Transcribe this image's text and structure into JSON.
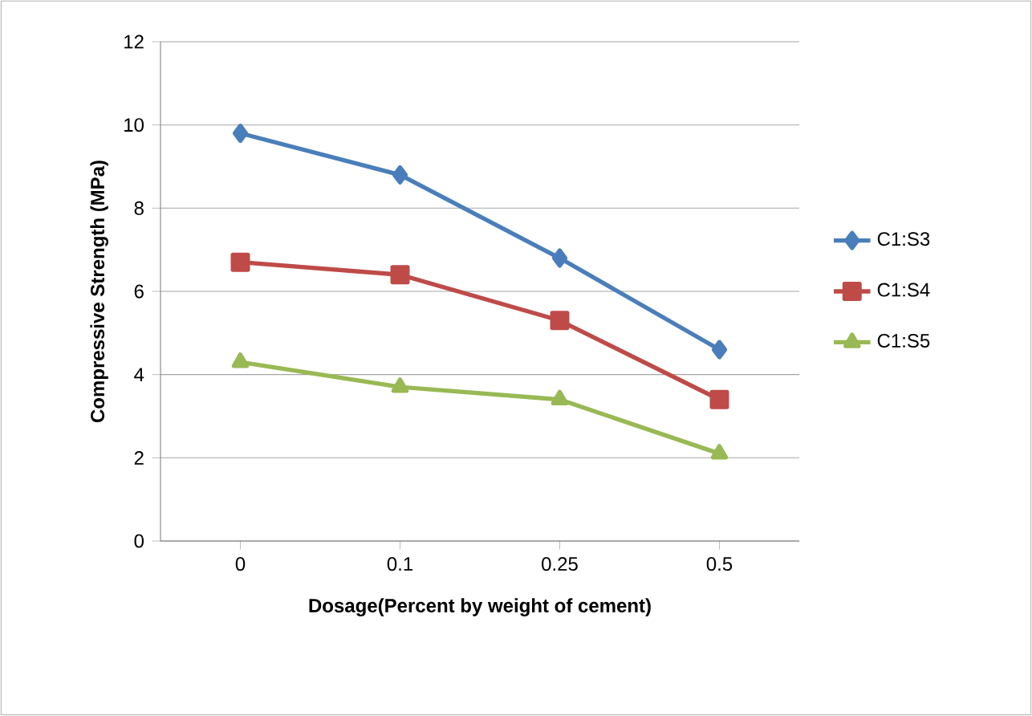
{
  "chart_data": {
    "type": "line",
    "xlabel": "Dosage(Percent by weight of cement)",
    "ylabel": "Compressive Strength (MPa)",
    "categories": [
      "0",
      "0.1",
      "0.25",
      "0.5"
    ],
    "series": [
      {
        "name": "C1:S3",
        "color": "#4a7ebb",
        "marker": "diamond",
        "values": [
          9.8,
          8.8,
          6.8,
          4.6
        ]
      },
      {
        "name": "C1:S4",
        "color": "#be4b48",
        "marker": "square",
        "values": [
          6.7,
          6.4,
          5.3,
          3.4
        ]
      },
      {
        "name": "C1:S5",
        "color": "#98b954",
        "marker": "triangle",
        "values": [
          4.3,
          3.7,
          3.4,
          2.1
        ]
      }
    ],
    "ylim": [
      0,
      12
    ],
    "yticks": [
      0,
      2,
      4,
      6,
      8,
      10,
      12
    ],
    "grid": "y",
    "legend": "right",
    "line_style": "solid"
  }
}
